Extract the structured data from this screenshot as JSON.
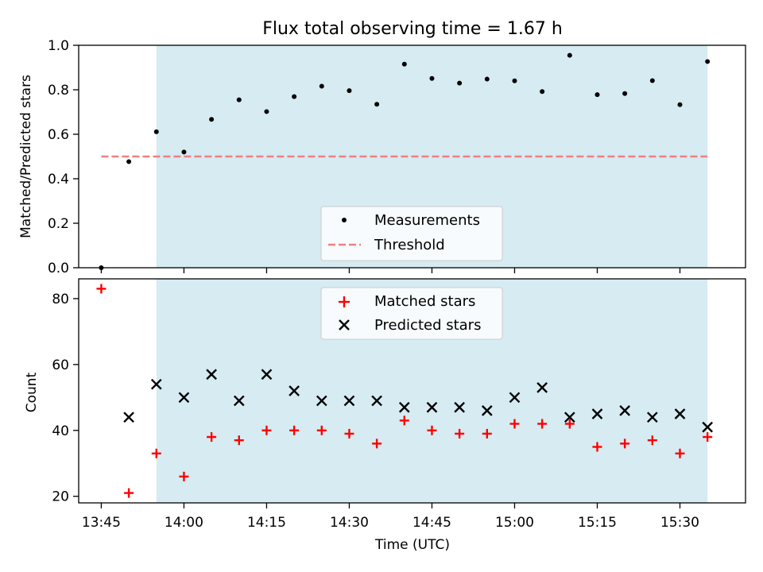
{
  "chart_data": [
    {
      "type": "scatter",
      "title": "Flux total observing time = 1.67 h",
      "xlabel": "",
      "ylabel": "Matched/Predicted stars",
      "ylim": [
        0,
        1.0
      ],
      "yticks": [
        "0.0",
        "0.2",
        "0.4",
        "0.6",
        "0.8",
        "1.0"
      ],
      "highlight_span": {
        "start": "13:55",
        "end": "15:35",
        "color": "#add8e6"
      },
      "series": [
        {
          "name": "Measurements",
          "marker": "dot",
          "color": "#000000",
          "x": [
            "13:45",
            "13:50",
            "13:55",
            "14:00",
            "14:05",
            "14:10",
            "14:15",
            "14:20",
            "14:25",
            "14:30",
            "14:35",
            "14:40",
            "14:45",
            "14:50",
            "14:55",
            "15:00",
            "15:05",
            "15:10",
            "15:15",
            "15:20",
            "15:25",
            "15:30",
            "15:35"
          ],
          "y": [
            0.0,
            0.477,
            0.611,
            0.52,
            0.667,
            0.755,
            0.702,
            0.769,
            0.816,
            0.796,
            0.735,
            0.915,
            0.851,
            0.83,
            0.848,
            0.84,
            0.792,
            0.955,
            0.778,
            0.783,
            0.841,
            0.733,
            0.927
          ]
        },
        {
          "name": "Threshold",
          "marker": "dashed-line",
          "color": "#f08080",
          "x": [
            "13:45",
            "15:35"
          ],
          "y": [
            0.5,
            0.5
          ]
        }
      ],
      "legend": {
        "placement": "lower-center",
        "entries": [
          "Measurements",
          "Threshold"
        ]
      }
    },
    {
      "type": "scatter",
      "xlabel": "Time (UTC)",
      "ylabel": "Count",
      "ylim": [
        18,
        86
      ],
      "yticks": [
        "20",
        "40",
        "60",
        "80"
      ],
      "xticks": [
        "13:45",
        "14:00",
        "14:15",
        "14:30",
        "14:45",
        "15:00",
        "15:15",
        "15:30"
      ],
      "highlight_span": {
        "start": "13:55",
        "end": "15:35",
        "color": "#add8e6"
      },
      "series": [
        {
          "name": "Matched stars",
          "marker": "plus",
          "color": "#ff0000",
          "x": [
            "13:45",
            "13:50",
            "13:55",
            "14:00",
            "14:05",
            "14:10",
            "14:15",
            "14:20",
            "14:25",
            "14:30",
            "14:35",
            "14:40",
            "14:45",
            "14:50",
            "14:55",
            "15:00",
            "15:05",
            "15:10",
            "15:15",
            "15:20",
            "15:25",
            "15:30",
            "15:35"
          ],
          "y": [
            83,
            21,
            33,
            26,
            38,
            37,
            40,
            40,
            40,
            39,
            36,
            43,
            40,
            39,
            39,
            42,
            42,
            42,
            35,
            36,
            37,
            33,
            38
          ]
        },
        {
          "name": "Predicted stars",
          "marker": "x",
          "color": "#000000",
          "x": [
            "13:50",
            "13:55",
            "14:00",
            "14:05",
            "14:10",
            "14:15",
            "14:20",
            "14:25",
            "14:30",
            "14:35",
            "14:40",
            "14:45",
            "14:50",
            "14:55",
            "15:00",
            "15:05",
            "15:10",
            "15:15",
            "15:20",
            "15:25",
            "15:30",
            "15:35"
          ],
          "y": [
            44,
            54,
            50,
            57,
            49,
            57,
            52,
            49,
            49,
            49,
            47,
            47,
            47,
            46,
            50,
            53,
            44,
            45,
            46,
            44,
            45,
            41
          ]
        }
      ],
      "legend": {
        "placement": "upper-center",
        "entries": [
          "Matched stars",
          "Predicted stars"
        ]
      }
    }
  ]
}
